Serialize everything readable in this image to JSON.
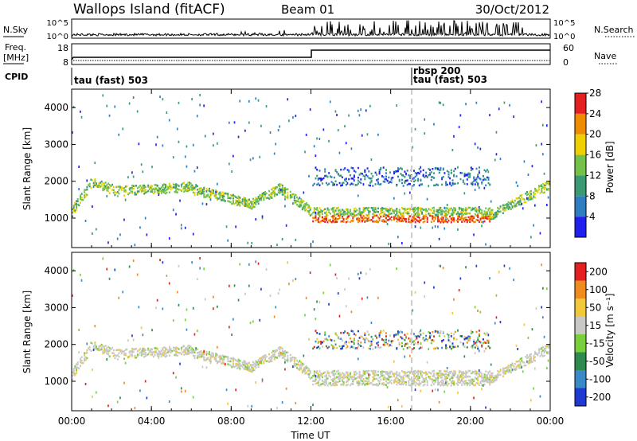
{
  "header": {
    "station": "Wallops Island (fitACF)",
    "beam": "Beam 01",
    "date": "30/Oct/2012"
  },
  "top_panels": {
    "nsky": {
      "label": "N.Sky",
      "ticks": [
        "10^5",
        "10^0"
      ],
      "right_label": "N.Search",
      "right_ticks": [
        "10^5",
        "10^0"
      ]
    },
    "freq": {
      "label_line1": "Freq.",
      "label_line2": "[MHz]",
      "ticks": [
        "18",
        "8"
      ],
      "right_label": "Nave",
      "right_ticks": [
        "60",
        "0"
      ]
    },
    "cpid": {
      "label": "CPID",
      "entries": [
        "tau (fast) 503",
        "rbsp 200",
        "tau (fast) 503"
      ]
    }
  },
  "chart_data": [
    {
      "type": "heatmap",
      "name": "power",
      "ylabel": "Slant Range [km]",
      "yticks": [
        "1000",
        "2000",
        "3000",
        "4000"
      ],
      "ylim": [
        200,
        4500
      ],
      "colorbar": {
        "label": "Power [dB]",
        "ticks": [
          "4",
          "8",
          "12",
          "16",
          "20",
          "24",
          "28"
        ],
        "colors": [
          "#1f1ff0",
          "#2e7ec2",
          "#3a9a74",
          "#74c24a",
          "#f0d000",
          "#f08c00",
          "#e52020"
        ]
      }
    },
    {
      "type": "heatmap",
      "name": "velocity",
      "ylabel": "Slant Range [km]",
      "yticks": [
        "1000",
        "2000",
        "3000",
        "4000"
      ],
      "ylim": [
        200,
        4500
      ],
      "colorbar": {
        "label": "Velocity [m s⁻¹]",
        "ticks": [
          "200",
          "100",
          "50",
          "15",
          "-15",
          "-50",
          "-100",
          "-200"
        ],
        "colors": [
          "#1f3ad0",
          "#3a8ac8",
          "#2e8a4e",
          "#7ad03a",
          "#c8c8c4",
          "#f0c83a",
          "#f08c1e",
          "#e52020"
        ]
      }
    }
  ],
  "x_axis": {
    "ticks": [
      "00:00",
      "04:00",
      "08:00",
      "12:00",
      "16:00",
      "20:00",
      "00:00"
    ],
    "label": "Time UT"
  }
}
